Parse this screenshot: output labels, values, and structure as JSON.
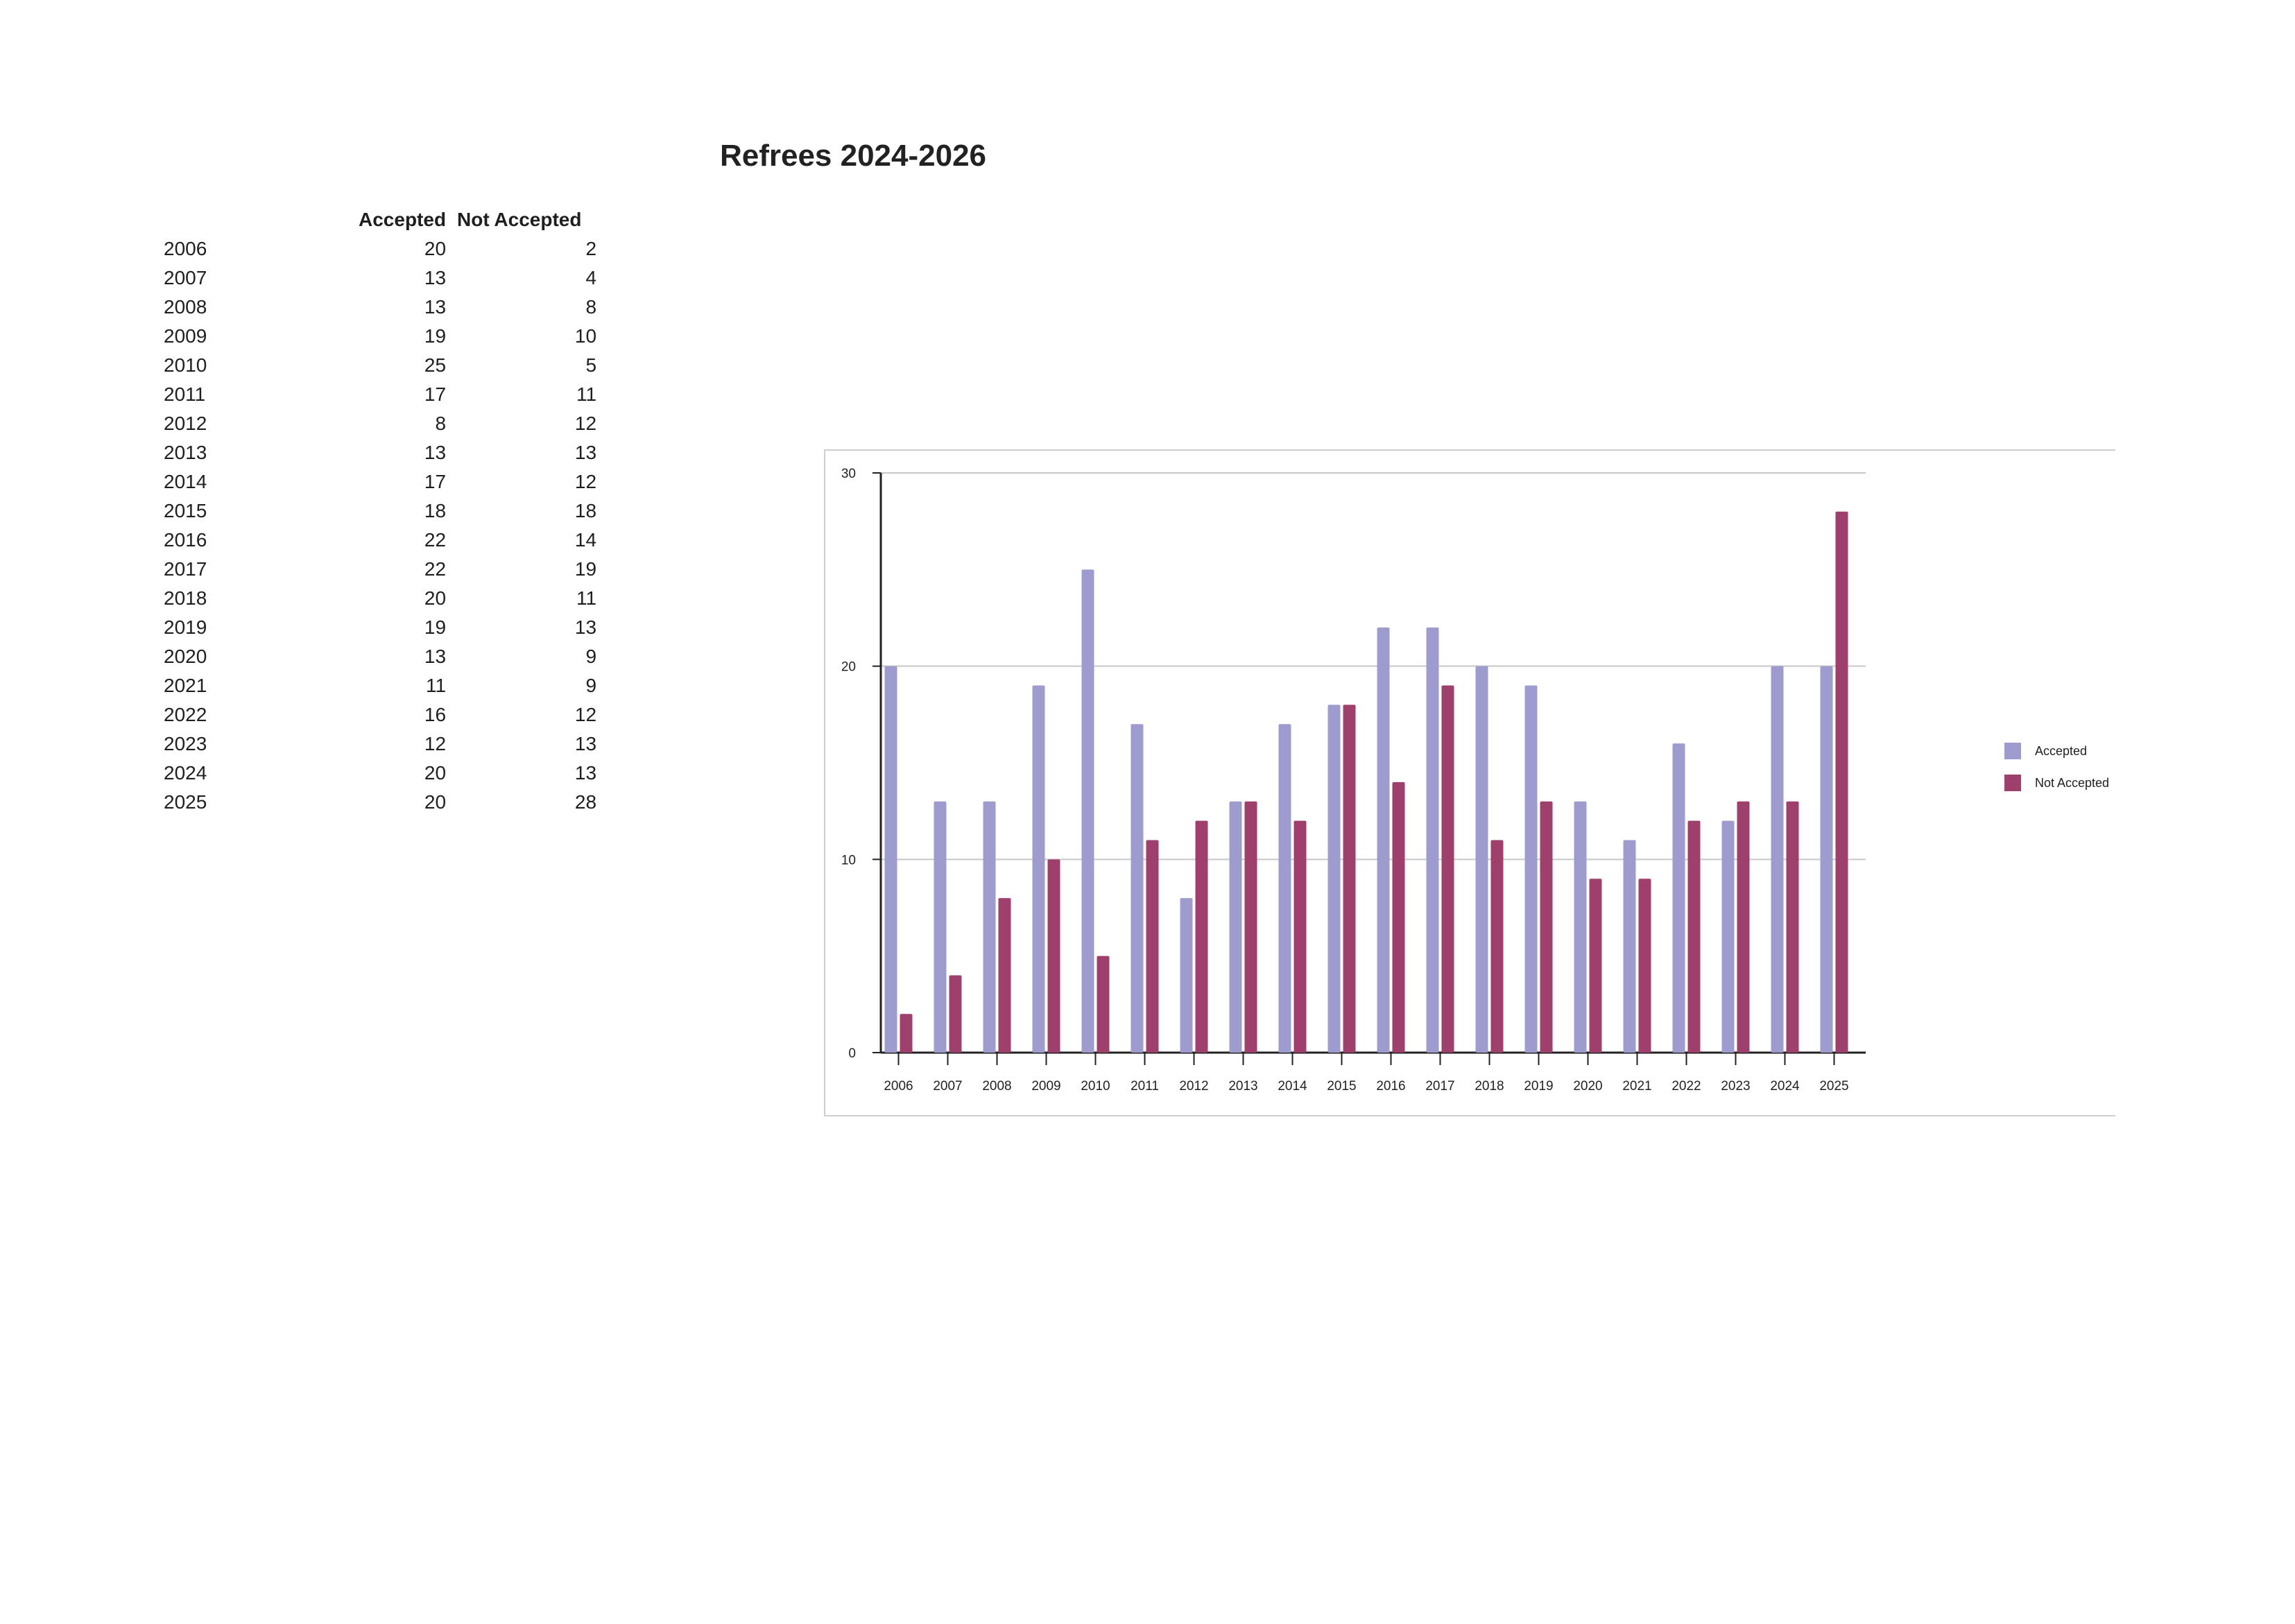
{
  "title": "Refrees 2024-2026",
  "table": {
    "headers": [
      "",
      "Accepted",
      "Not Accepted"
    ],
    "rows": [
      [
        "2006",
        "20",
        "2"
      ],
      [
        "2007",
        "13",
        "4"
      ],
      [
        "2008",
        "13",
        "8"
      ],
      [
        "2009",
        "19",
        "10"
      ],
      [
        "2010",
        "25",
        "5"
      ],
      [
        "2011",
        "17",
        "11"
      ],
      [
        "2012",
        "8",
        "12"
      ],
      [
        "2013",
        "13",
        "13"
      ],
      [
        "2014",
        "17",
        "12"
      ],
      [
        "2015",
        "18",
        "18"
      ],
      [
        "2016",
        "22",
        "14"
      ],
      [
        "2017",
        "22",
        "19"
      ],
      [
        "2018",
        "20",
        "11"
      ],
      [
        "2019",
        "19",
        "13"
      ],
      [
        "2020",
        "13",
        "9"
      ],
      [
        "2021",
        "11",
        "9"
      ],
      [
        "2022",
        "16",
        "12"
      ],
      [
        "2023",
        "12",
        "13"
      ],
      [
        "2024",
        "20",
        "13"
      ],
      [
        "2025",
        "20",
        "28"
      ]
    ]
  },
  "chart_data": {
    "type": "bar",
    "categories": [
      "2006",
      "2007",
      "2008",
      "2009",
      "2010",
      "2011",
      "2012",
      "2013",
      "2014",
      "2015",
      "2016",
      "2017",
      "2018",
      "2019",
      "2020",
      "2021",
      "2022",
      "2023",
      "2024",
      "2025"
    ],
    "series": [
      {
        "name": "Accepted",
        "color": "#9e9ccf",
        "values": [
          20,
          13,
          13,
          19,
          25,
          17,
          8,
          13,
          17,
          18,
          22,
          22,
          20,
          19,
          13,
          11,
          16,
          12,
          20,
          20
        ]
      },
      {
        "name": "Not Accepted",
        "color": "#9e3f6c",
        "values": [
          2,
          4,
          8,
          10,
          5,
          11,
          12,
          13,
          12,
          18,
          14,
          19,
          11,
          13,
          9,
          9,
          12,
          13,
          13,
          28
        ]
      }
    ],
    "ylim": [
      0,
      30
    ],
    "yticks": [
      0,
      10,
      20,
      30
    ],
    "grid": true,
    "legend": "right"
  }
}
